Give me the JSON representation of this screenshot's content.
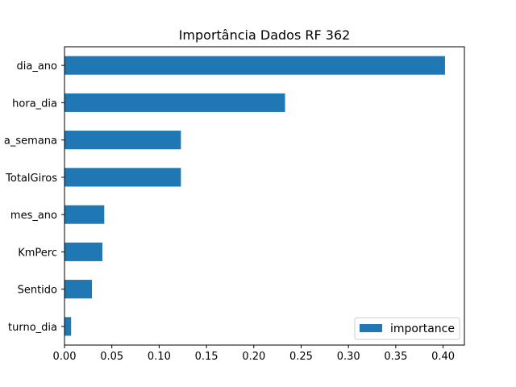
{
  "chart_data": {
    "type": "bar",
    "orientation": "horizontal",
    "title": "Importância Dados RF 362",
    "xlabel": "",
    "ylabel": "",
    "categories": [
      "dia_ano",
      "hora_dia",
      "dia_semana",
      "TotalGiros",
      "mes_ano",
      "KmPerc",
      "Sentido",
      "turno_dia"
    ],
    "visible_category_labels": [
      "dia_ano",
      "hora_dia",
      "a_semana",
      "TotalGiros",
      "mes_ano",
      "KmPerc",
      "Sentido",
      "turno_dia"
    ],
    "series": [
      {
        "name": "importance",
        "color": "#1f77b4",
        "values": [
          0.402,
          0.233,
          0.123,
          0.123,
          0.042,
          0.04,
          0.029,
          0.007
        ]
      }
    ],
    "xlim": [
      0.0,
      0.4225
    ],
    "xticks": [
      0.0,
      0.05,
      0.1,
      0.15,
      0.2,
      0.25,
      0.3,
      0.35,
      0.4
    ],
    "xtick_labels": [
      "0.00",
      "0.05",
      "0.10",
      "0.15",
      "0.20",
      "0.25",
      "0.30",
      "0.35",
      "0.40"
    ],
    "grid": false,
    "legend": {
      "placement": "lower-right",
      "entries": [
        "importance"
      ]
    }
  }
}
